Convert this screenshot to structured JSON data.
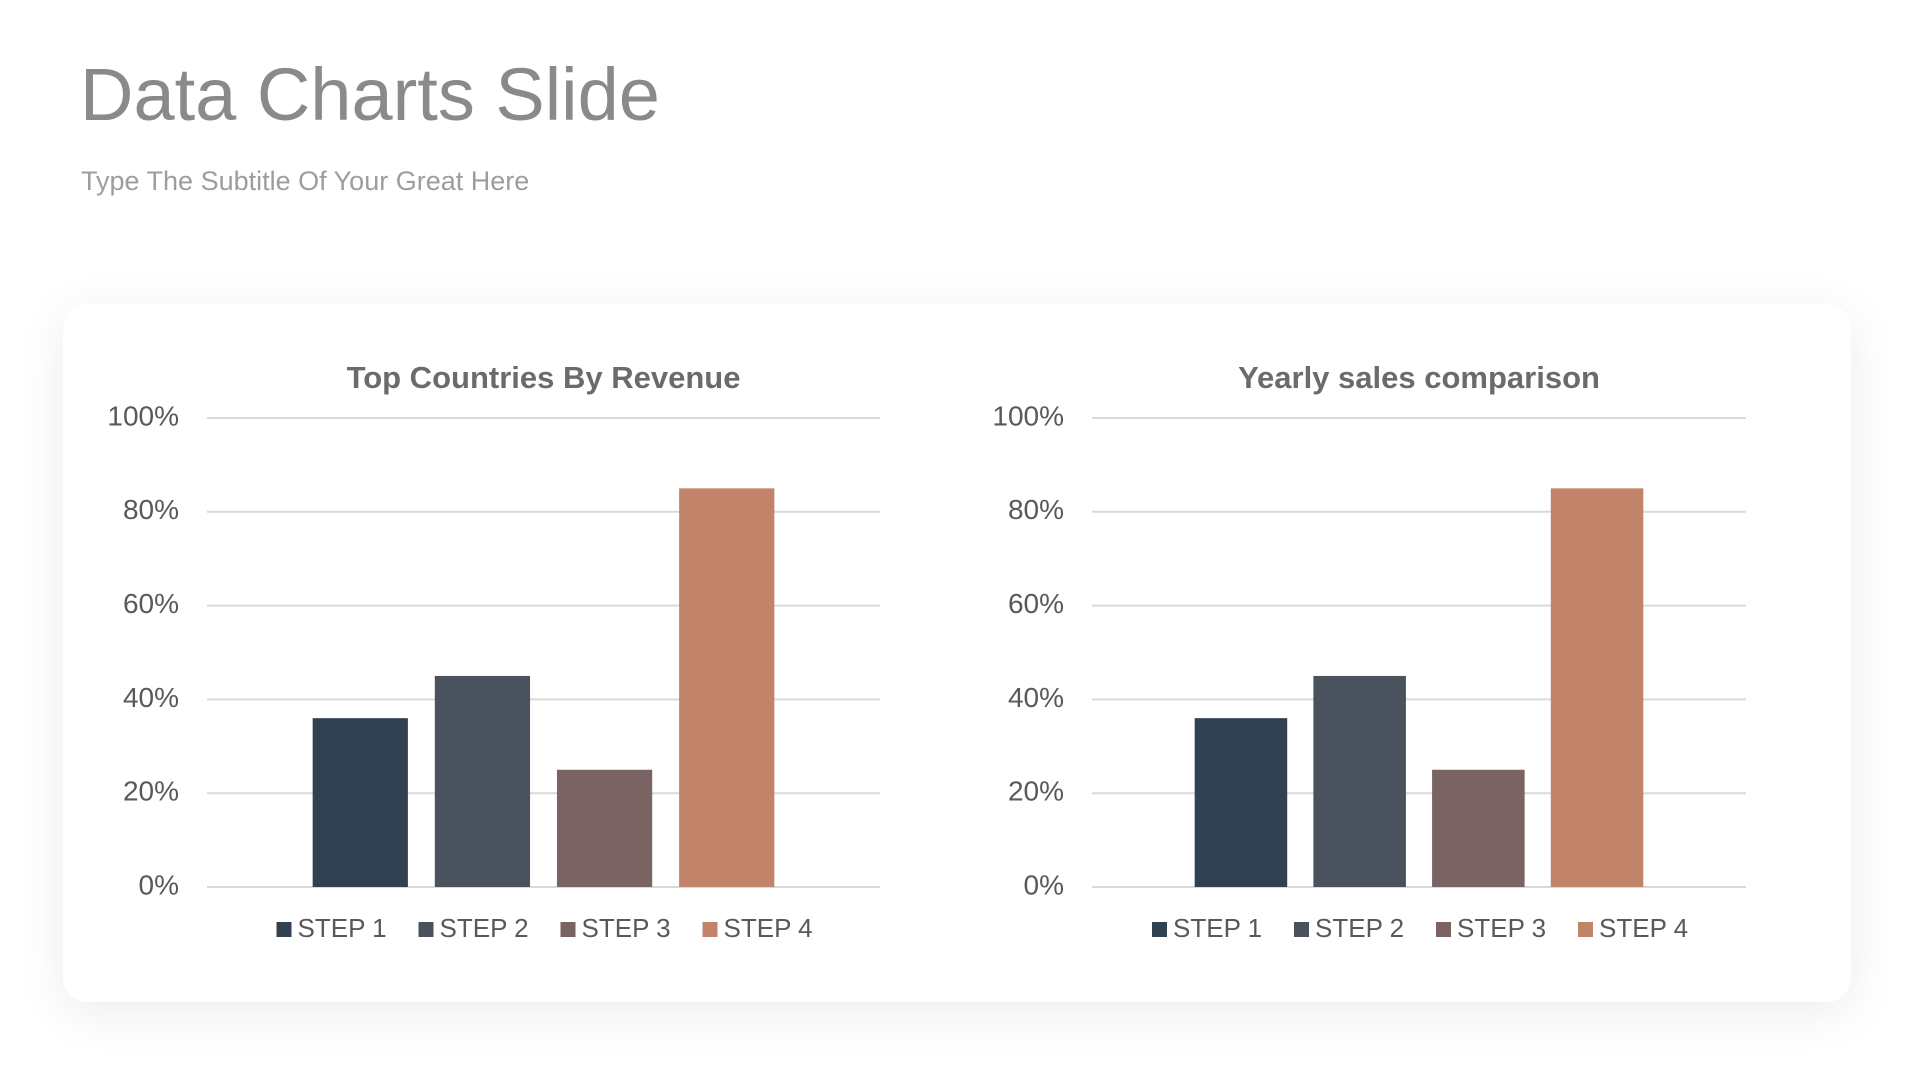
{
  "header": {
    "title": "Data Charts Slide",
    "subtitle": "Type The Subtitle Of Your Great Here"
  },
  "chart_data": [
    {
      "type": "bar",
      "title": "Top Countries By Revenue",
      "series": [
        {
          "name": "STEP 1",
          "color": "#324152",
          "values": [
            36
          ]
        },
        {
          "name": "STEP 2",
          "color": "#4a535d",
          "values": [
            45
          ]
        },
        {
          "name": "STEP 3",
          "color": "#796363",
          "values": [
            25
          ]
        },
        {
          "name": "STEP 4",
          "color": "#c1846b",
          "values": [
            85
          ]
        }
      ],
      "ylim": [
        0,
        100
      ],
      "yticks": [
        {
          "value": 0,
          "label": "0%"
        },
        {
          "value": 20,
          "label": "20%"
        },
        {
          "value": 40,
          "label": "40%"
        },
        {
          "value": 60,
          "label": "60%"
        },
        {
          "value": 80,
          "label": "80%"
        },
        {
          "value": 100,
          "label": "100%"
        }
      ],
      "grid": true,
      "legend": "bottom"
    },
    {
      "type": "bar",
      "title": "Yearly sales comparison",
      "series": [
        {
          "name": "STEP 1",
          "color": "#324152",
          "values": [
            36
          ]
        },
        {
          "name": "STEP 2",
          "color": "#4a535d",
          "values": [
            45
          ]
        },
        {
          "name": "STEP 3",
          "color": "#796363",
          "values": [
            25
          ]
        },
        {
          "name": "STEP 4",
          "color": "#c1846b",
          "values": [
            85
          ]
        }
      ],
      "ylim": [
        0,
        100
      ],
      "yticks": [
        {
          "value": 0,
          "label": "0%"
        },
        {
          "value": 20,
          "label": "20%"
        },
        {
          "value": 40,
          "label": "40%"
        },
        {
          "value": 60,
          "label": "60%"
        },
        {
          "value": 80,
          "label": "80%"
        },
        {
          "value": 100,
          "label": "100%"
        }
      ],
      "grid": true,
      "legend": "bottom"
    }
  ]
}
